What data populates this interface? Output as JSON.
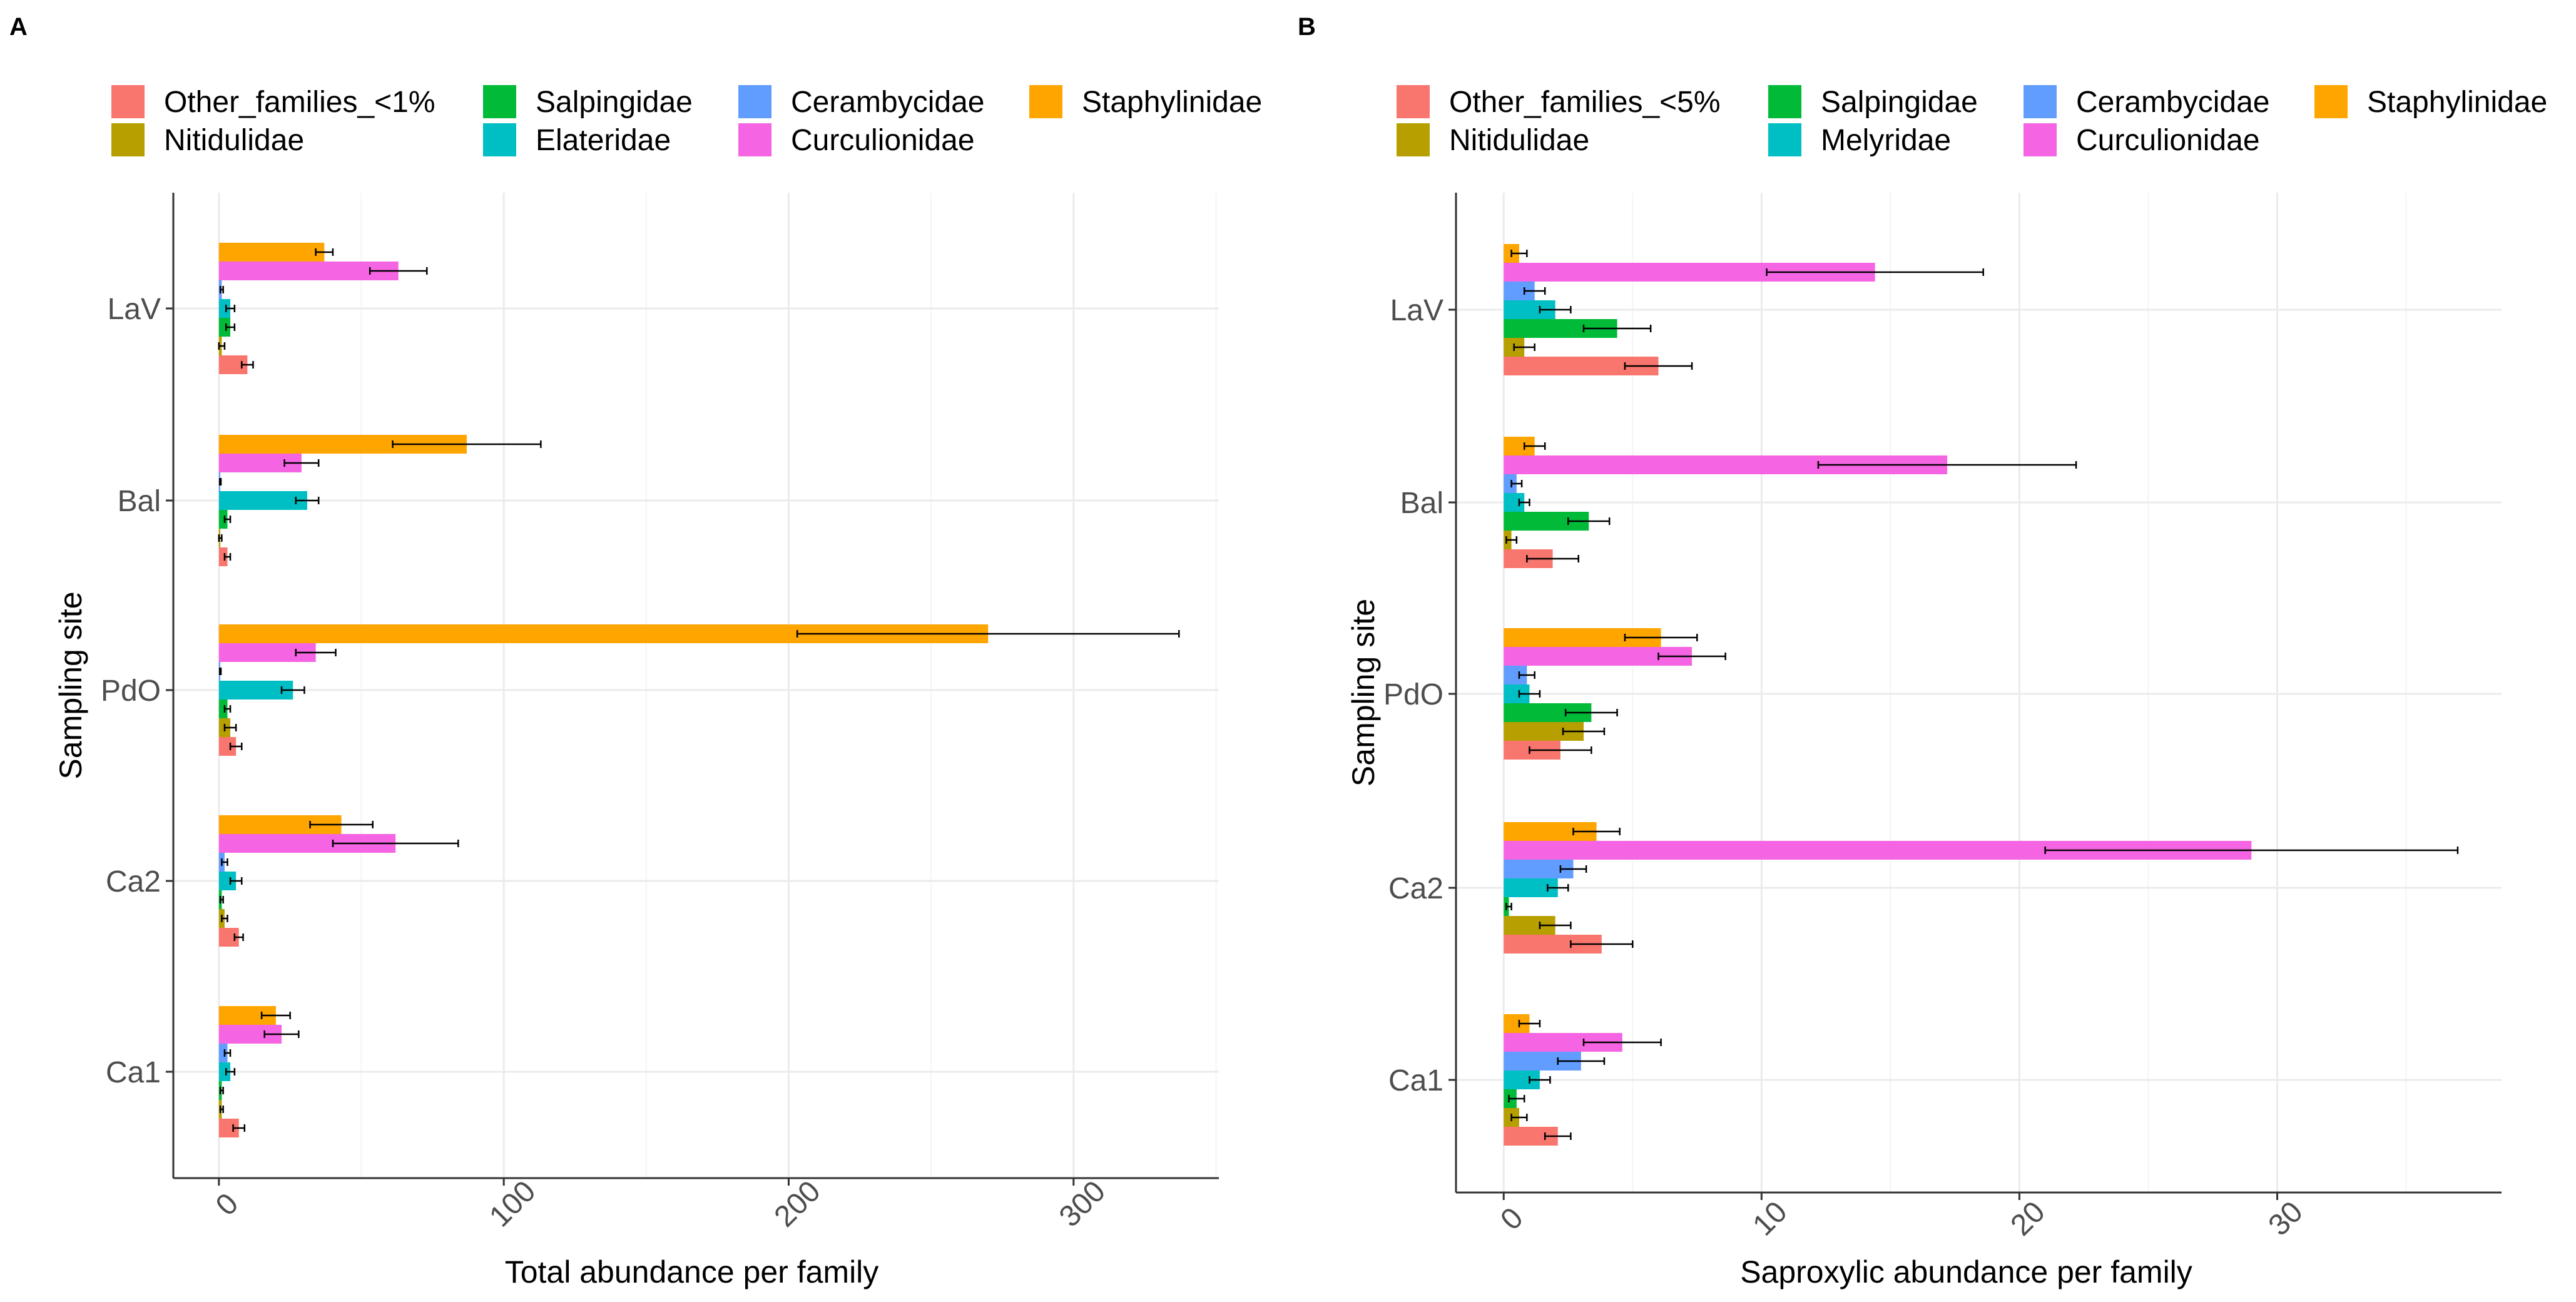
{
  "figure": {
    "panels": [
      "A",
      "B"
    ]
  },
  "chart_data": [
    {
      "type": "bar",
      "orientation": "horizontal",
      "panel_label": "A",
      "title": "",
      "xlabel": "Total abundance per family",
      "ylabel": "Sampling site",
      "xlim": [
        -16,
        351
      ],
      "xticks": [
        0,
        100,
        200,
        300
      ],
      "xtick_labels": [
        "0",
        "100",
        "200",
        "300"
      ],
      "grid": true,
      "legend_position": "top",
      "categories": [
        "LaV",
        "Bal",
        "PdO",
        "Ca2",
        "Ca1"
      ],
      "series": [
        {
          "name": "Other_families_<1%",
          "color": "#F8766D",
          "values": [
            10,
            3,
            6,
            7,
            7
          ],
          "err": [
            2,
            1,
            2,
            1.5,
            2
          ]
        },
        {
          "name": "Nitidulidae",
          "color": "#B79F00",
          "values": [
            1,
            0.5,
            4,
            2,
            1
          ],
          "err": [
            1,
            0.5,
            2,
            1,
            0.5
          ]
        },
        {
          "name": "Salpingidae",
          "color": "#00BA38",
          "values": [
            4,
            3,
            3,
            1,
            1
          ],
          "err": [
            1.5,
            1,
            1,
            0.5,
            0.5
          ]
        },
        {
          "name": "Elateridae",
          "color": "#00BFC4",
          "values": [
            4,
            31,
            26,
            6,
            4
          ],
          "err": [
            1.5,
            4,
            4,
            2,
            1.5
          ]
        },
        {
          "name": "Cerambycidae",
          "color": "#619CFF",
          "values": [
            1,
            0.5,
            0.5,
            2,
            3
          ],
          "err": [
            0.5,
            0.2,
            0.2,
            1,
            1
          ]
        },
        {
          "name": "Curculionidae",
          "color": "#F564E3",
          "values": [
            63,
            29,
            34,
            62,
            22
          ],
          "err": [
            10,
            6,
            7,
            22,
            6
          ]
        },
        {
          "name": "Staphylinidae",
          "color": "#FFA500",
          "values": [
            37,
            87,
            270,
            43,
            20
          ],
          "err": [
            3,
            26,
            67,
            11,
            5
          ]
        }
      ]
    },
    {
      "type": "bar",
      "orientation": "horizontal",
      "panel_label": "B",
      "title": "",
      "xlabel": "Saproxylic abundance per family",
      "ylabel": "Sampling site",
      "xlim": [
        -1.85,
        38.7
      ],
      "xticks": [
        0,
        10,
        20,
        30
      ],
      "xtick_labels": [
        "0",
        "10",
        "20",
        "30"
      ],
      "grid": true,
      "legend_position": "top",
      "categories": [
        "LaV",
        "Bal",
        "PdO",
        "Ca2",
        "Ca1"
      ],
      "series": [
        {
          "name": "Other_families_<5%",
          "color": "#F8766D",
          "values": [
            6,
            1.9,
            2.2,
            3.8,
            2.1
          ],
          "err": [
            1.3,
            1,
            1.2,
            1.2,
            0.5
          ]
        },
        {
          "name": "Nitidulidae",
          "color": "#B79F00",
          "values": [
            0.8,
            0.3,
            3.1,
            2,
            0.6
          ],
          "err": [
            0.4,
            0.2,
            0.8,
            0.6,
            0.3
          ]
        },
        {
          "name": "Salpingidae",
          "color": "#00BA38",
          "values": [
            4.4,
            3.3,
            3.4,
            0.2,
            0.5
          ],
          "err": [
            1.3,
            0.8,
            1,
            0.1,
            0.3
          ]
        },
        {
          "name": "Melyridae",
          "color": "#00BFC4",
          "values": [
            2,
            0.8,
            1,
            2.1,
            1.4
          ],
          "err": [
            0.6,
            0.2,
            0.4,
            0.4,
            0.4
          ]
        },
        {
          "name": "Cerambycidae",
          "color": "#619CFF",
          "values": [
            1.2,
            0.5,
            0.9,
            2.7,
            3
          ],
          "err": [
            0.4,
            0.2,
            0.3,
            0.5,
            0.9
          ]
        },
        {
          "name": "Curculionidae",
          "color": "#F564E3",
          "values": [
            14.4,
            17.2,
            7.3,
            29,
            4.6
          ],
          "err": [
            4.2,
            5,
            1.3,
            8,
            1.5
          ]
        },
        {
          "name": "Staphylinidae",
          "color": "#FFA500",
          "values": [
            0.6,
            1.2,
            6.1,
            3.6,
            1
          ],
          "err": [
            0.3,
            0.4,
            1.4,
            0.9,
            0.4
          ]
        }
      ]
    }
  ]
}
